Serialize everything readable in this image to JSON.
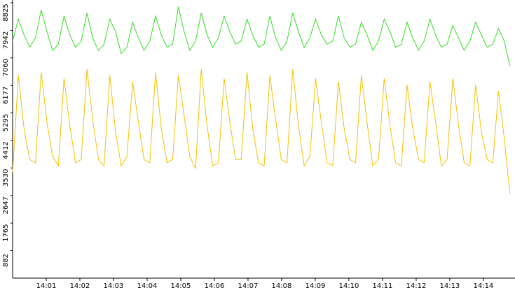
{
  "chart_data": {
    "type": "line",
    "x": [
      0,
      0.17,
      0.34,
      0.51,
      0.68,
      0.85,
      1.02,
      1.19,
      1.36,
      1.53,
      1.7,
      1.87,
      2.04,
      2.21,
      2.38,
      2.55,
      2.72,
      2.89,
      3.06,
      3.23,
      3.4,
      3.57,
      3.74,
      3.91,
      4.08,
      4.25,
      4.42,
      4.59,
      4.76,
      4.93,
      5.1,
      5.27,
      5.44,
      5.61,
      5.78,
      5.95,
      6.12,
      6.29,
      6.46,
      6.63,
      6.8,
      6.97,
      7.14,
      7.31,
      7.48,
      7.65,
      7.82,
      7.99,
      8.16,
      8.33,
      8.5,
      8.67,
      8.84,
      9.01,
      9.18,
      9.35,
      9.52,
      9.69,
      9.86,
      10.03,
      10.2,
      10.37,
      10.54,
      10.71,
      10.88,
      11.05,
      11.22,
      11.39,
      11.56,
      11.73,
      11.9,
      12.07,
      12.24,
      12.41,
      12.58,
      12.75,
      12.92,
      13.09,
      13.26,
      13.43,
      13.6,
      13.77,
      13.94,
      14.11,
      14.28,
      14.45,
      14.62,
      14.79
    ],
    "series": [
      {
        "color": "#33dd22",
        "values": [
          7600,
          8300,
          7800,
          7400,
          7700,
          8600,
          7900,
          7300,
          7500,
          8400,
          7800,
          7400,
          7600,
          8500,
          7700,
          7300,
          7500,
          8300,
          7900,
          7200,
          7400,
          8200,
          7700,
          7300,
          7600,
          8400,
          7800,
          7400,
          7500,
          8700,
          7900,
          7300,
          7600,
          8500,
          7800,
          7400,
          7700,
          8400,
          7900,
          7500,
          7600,
          8300,
          7800,
          7400,
          7500,
          8400,
          7700,
          7300,
          7600,
          8500,
          7900,
          7400,
          7700,
          8300,
          7800,
          7500,
          7600,
          8400,
          7700,
          7400,
          7500,
          8200,
          7800,
          7300,
          7600,
          8300,
          7900,
          7400,
          7500,
          8200,
          7700,
          7300,
          7600,
          8300,
          7800,
          7400,
          7500,
          8100,
          7700,
          7300,
          7600,
          8200,
          7800,
          7400,
          7500,
          8000,
          7600,
          6800
        ]
      },
      {
        "color": "#f5c000",
        "values": [
          3400,
          6500,
          4800,
          3800,
          3700,
          6600,
          5000,
          3900,
          3600,
          6400,
          4900,
          3700,
          3800,
          6700,
          5100,
          3800,
          3600,
          6500,
          4700,
          3600,
          3900,
          6300,
          5000,
          3800,
          3700,
          6600,
          4800,
          3700,
          3800,
          6500,
          5200,
          3900,
          3500,
          6700,
          4900,
          3600,
          3700,
          6400,
          5000,
          3800,
          3800,
          6600,
          4800,
          3700,
          3600,
          6500,
          5100,
          3800,
          3700,
          6700,
          4900,
          3600,
          3900,
          6400,
          5000,
          3700,
          3600,
          6300,
          4800,
          3800,
          3700,
          6500,
          5000,
          3600,
          3800,
          6400,
          4900,
          3700,
          3600,
          6200,
          4800,
          3800,
          3700,
          6300,
          5000,
          3600,
          3800,
          6400,
          4900,
          3700,
          3600,
          6200,
          4700,
          3800,
          3700,
          6000,
          4500,
          2700
        ]
      }
    ],
    "xlim": [
      0,
      14.94
    ],
    "xticks": [
      {
        "value": 1,
        "label": "14:01"
      },
      {
        "value": 2,
        "label": "14:02"
      },
      {
        "value": 3,
        "label": "14:03"
      },
      {
        "value": 4,
        "label": "14:04"
      },
      {
        "value": 5,
        "label": "14:05"
      },
      {
        "value": 6,
        "label": "14:06"
      },
      {
        "value": 7,
        "label": "14:07"
      },
      {
        "value": 8,
        "label": "14:08"
      },
      {
        "value": 9,
        "label": "14:09"
      },
      {
        "value": 10,
        "label": "14:10"
      },
      {
        "value": 11,
        "label": "14:11"
      },
      {
        "value": 12,
        "label": "14:12"
      },
      {
        "value": 13,
        "label": "14:13"
      },
      {
        "value": 14,
        "label": "14:14"
      }
    ],
    "ylim": [
      0,
      8825
    ],
    "yticks": [
      882,
      1765,
      2647,
      3530,
      4412,
      5295,
      6177,
      7060,
      7942,
      8825
    ]
  }
}
